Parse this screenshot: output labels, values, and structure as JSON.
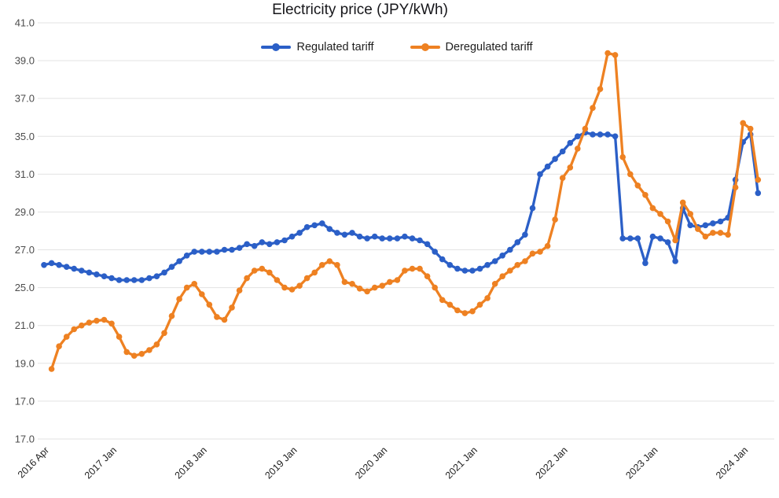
{
  "title": "Electricity price (JPY/kWh)",
  "legend": {
    "items": [
      {
        "label": "Regulated tariff",
        "color": "#2b5fc7"
      },
      {
        "label": "Deregulated tariff",
        "color": "#ee8122"
      }
    ]
  },
  "colors": {
    "regulated": "#2b5fc7",
    "deregulated": "#ee8122",
    "gridline": "#e3e3e3",
    "y_label": "#4d4d4d",
    "x_label": "#222222",
    "title": "#16161a",
    "background": "#ffffff"
  },
  "chart_data": {
    "type": "line",
    "title": "Electricity price (JPY/kWh)",
    "xlabel": "",
    "ylabel": "",
    "grid": true,
    "legend_position": "top",
    "marker": "circle",
    "y_axis_labels_top_to_bottom": [
      "41.0",
      "39.0",
      "37.0",
      "35.0",
      "31.0",
      "29.0",
      "27.0",
      "25.0",
      "21.0",
      "19.0",
      "17.0",
      "17.0"
    ],
    "x_tick_labels": [
      "2016 Apr",
      "2017 Jan",
      "2018 Jan",
      "2019 Jan",
      "2020 Jan",
      "2021 Jan",
      "2022 Jan",
      "2023 Jan",
      "2024 Jan"
    ],
    "x_tick_indices": [
      0,
      9,
      21,
      33,
      45,
      57,
      69,
      81,
      93
    ],
    "x": [
      "2016-04",
      "2016-05",
      "2016-06",
      "2016-07",
      "2016-08",
      "2016-09",
      "2016-10",
      "2016-11",
      "2016-12",
      "2017-01",
      "2017-02",
      "2017-03",
      "2017-04",
      "2017-05",
      "2017-06",
      "2017-07",
      "2017-08",
      "2017-09",
      "2017-10",
      "2017-11",
      "2017-12",
      "2018-01",
      "2018-02",
      "2018-03",
      "2018-04",
      "2018-05",
      "2018-06",
      "2018-07",
      "2018-08",
      "2018-09",
      "2018-10",
      "2018-11",
      "2018-12",
      "2019-01",
      "2019-02",
      "2019-03",
      "2019-04",
      "2019-05",
      "2019-06",
      "2019-07",
      "2019-08",
      "2019-09",
      "2019-10",
      "2019-11",
      "2019-12",
      "2020-01",
      "2020-02",
      "2020-03",
      "2020-04",
      "2020-05",
      "2020-06",
      "2020-07",
      "2020-08",
      "2020-09",
      "2020-10",
      "2020-11",
      "2020-12",
      "2021-01",
      "2021-02",
      "2021-03",
      "2021-04",
      "2021-05",
      "2021-06",
      "2021-07",
      "2021-08",
      "2021-09",
      "2021-10",
      "2021-11",
      "2021-12",
      "2022-01",
      "2022-02",
      "2022-03",
      "2022-04",
      "2022-05",
      "2022-06",
      "2022-07",
      "2022-08",
      "2022-09",
      "2022-10",
      "2022-11",
      "2022-12",
      "2023-01",
      "2023-02",
      "2023-03",
      "2023-04",
      "2023-05",
      "2023-06",
      "2023-07",
      "2023-08",
      "2023-09",
      "2023-10",
      "2023-11",
      "2023-12",
      "2024-01",
      "2024-02",
      "2024-03"
    ],
    "series": [
      {
        "name": "Regulated tariff",
        "color": "#2b5fc7",
        "values": [
          26.2,
          26.3,
          26.2,
          26.1,
          26.0,
          25.9,
          25.8,
          25.7,
          25.6,
          25.5,
          25.4,
          25.4,
          25.4,
          25.4,
          25.5,
          25.6,
          25.8,
          26.1,
          26.4,
          26.7,
          26.9,
          26.9,
          26.9,
          26.9,
          27.0,
          27.0,
          27.1,
          27.3,
          27.2,
          27.4,
          27.3,
          27.4,
          27.5,
          27.7,
          27.9,
          28.2,
          28.3,
          28.4,
          28.1,
          27.9,
          27.8,
          27.9,
          27.7,
          27.6,
          27.7,
          27.6,
          27.6,
          27.6,
          27.7,
          27.6,
          27.5,
          27.3,
          26.9,
          26.5,
          26.2,
          26.0,
          25.9,
          25.9,
          26.0,
          26.2,
          26.4,
          26.7,
          27.0,
          27.4,
          27.8,
          29.2,
          31.0,
          31.8,
          32.6,
          33.4,
          34.3,
          35.0,
          35.2,
          35.1,
          35.1,
          35.1,
          35.0,
          27.6,
          27.6,
          27.6,
          26.3,
          27.7,
          27.6,
          27.4,
          26.4,
          29.2,
          28.3,
          28.2,
          28.3,
          28.4,
          28.5,
          28.7,
          30.7,
          34.4,
          35.1,
          30.0
        ]
      },
      {
        "name": "Deregulated tariff",
        "color": "#ee8122",
        "values": [
          null,
          18.7,
          19.9,
          20.4,
          20.8,
          21.0,
          21.3,
          21.5,
          21.6,
          21.2,
          20.4,
          19.6,
          19.4,
          19.5,
          19.7,
          20.0,
          20.6,
          22.0,
          23.8,
          25.0,
          25.2,
          24.3,
          23.2,
          21.9,
          21.6,
          22.9,
          24.7,
          25.5,
          25.9,
          26.0,
          25.8,
          25.4,
          25.0,
          24.8,
          25.1,
          25.5,
          25.8,
          26.2,
          26.4,
          26.2,
          25.3,
          25.2,
          24.9,
          24.6,
          25.0,
          25.1,
          25.3,
          25.4,
          25.9,
          26.0,
          26.0,
          25.6,
          25.0,
          23.7,
          23.2,
          22.6,
          22.3,
          22.5,
          23.2,
          23.9,
          25.2,
          25.6,
          25.9,
          26.2,
          26.4,
          26.8,
          26.9,
          27.2,
          28.6,
          30.8,
          31.7,
          33.7,
          35.4,
          36.5,
          37.5,
          39.4,
          39.3,
          32.8,
          31.0,
          30.4,
          29.9,
          29.2,
          28.9,
          28.5,
          27.5,
          29.5,
          28.9,
          28.1,
          27.7,
          27.9,
          27.9,
          27.8,
          30.3,
          35.7,
          35.4,
          30.7
        ]
      }
    ]
  }
}
